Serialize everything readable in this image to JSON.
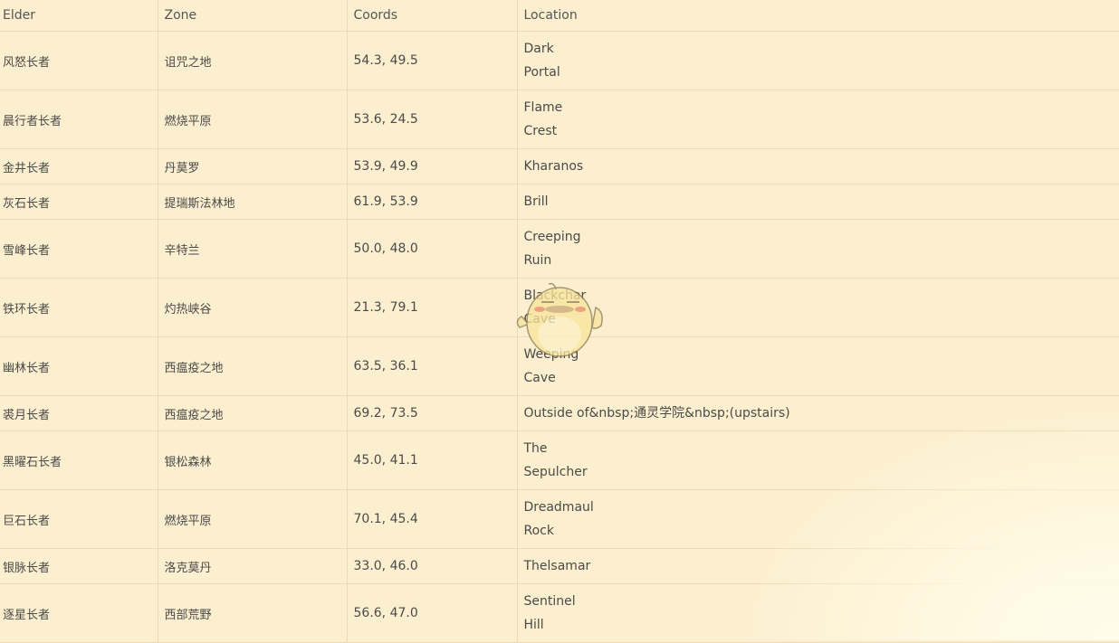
{
  "table": {
    "headers": [
      "Elder",
      "Zone",
      "Coords",
      "Location"
    ],
    "rows": [
      {
        "elder": "风怒长者",
        "zone": "诅咒之地",
        "coords": "54.3, 49.5",
        "location": [
          "Dark",
          "Portal"
        ]
      },
      {
        "elder": "晨行者长者",
        "zone": "燃烧平原",
        "coords": "53.6, 24.5",
        "location": [
          "Flame",
          "Crest"
        ]
      },
      {
        "elder": "金井长者",
        "zone": "丹莫罗",
        "coords": "53.9, 49.9",
        "location": [
          "Kharanos"
        ]
      },
      {
        "elder": "灰石长者",
        "zone": "提瑞斯法林地",
        "coords": "61.9, 53.9",
        "location": [
          "Brill"
        ]
      },
      {
        "elder": "雪峰长者",
        "zone": "辛特兰",
        "coords": "50.0, 48.0",
        "location": [
          "Creeping",
          "Ruin"
        ]
      },
      {
        "elder": "铁环长者",
        "zone": "灼热峡谷",
        "coords": "21.3, 79.1",
        "location": [
          "Blackchar",
          "Cave"
        ]
      },
      {
        "elder": "幽林长者",
        "zone": "西瘟疫之地",
        "coords": "63.5, 36.1",
        "location": [
          "Weeping",
          "Cave"
        ]
      },
      {
        "elder": "裘月长者",
        "zone": "西瘟疫之地",
        "coords": "69.2, 73.5",
        "location": [
          "Outside of&nbsp;通灵学院&nbsp;(upstairs)"
        ]
      },
      {
        "elder": "黑曜石长者",
        "zone": "银松森林",
        "coords": "45.0, 41.1",
        "location": [
          "The",
          "Sepulcher"
        ]
      },
      {
        "elder": "巨石长者",
        "zone": "燃烧平原",
        "coords": "70.1, 45.4",
        "location": [
          "Dreadmaul",
          "Rock"
        ]
      },
      {
        "elder": "银脉长者",
        "zone": "洛克莫丹",
        "coords": "33.0, 46.0",
        "location": [
          "Thelsamar"
        ]
      },
      {
        "elder": "逐星长者",
        "zone": "西部荒野",
        "coords": "56.6, 47.0",
        "location": [
          "Sentinel",
          "Hill"
        ]
      }
    ]
  },
  "colors": {
    "background": "#fcefd0",
    "grid": "#ecd9b6",
    "text": "#4a4a48"
  },
  "overlay_icon": "chick-mascot-sticker"
}
